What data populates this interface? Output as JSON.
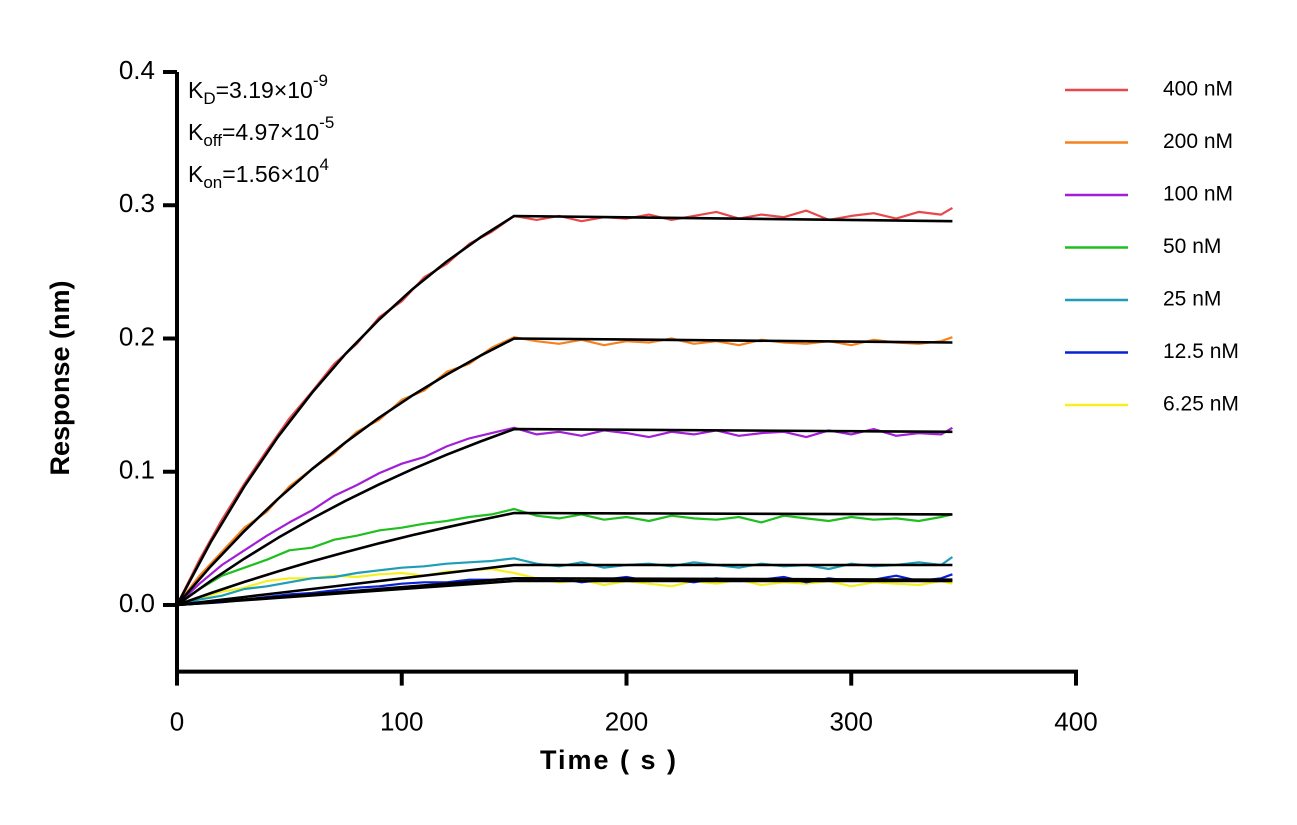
{
  "chart_data": {
    "type": "line",
    "x_label": "Time ( s )",
    "y_label": "Response (nm)",
    "xlim": [
      0,
      400
    ],
    "xticks": [
      0,
      100,
      200,
      300,
      400
    ],
    "ylim": [
      -0.05,
      0.4
    ],
    "yticks": [
      {
        "value": 0,
        "label": "0.0"
      },
      0.1,
      0.2,
      0.3,
      0.4
    ],
    "legend": "right",
    "annotations": [
      {
        "symbol": "K",
        "subscript": "D",
        "value": "=3.19×10",
        "exponent": "-9"
      },
      {
        "symbol": "K",
        "subscript": "off",
        "value": "=4.97×10",
        "exponent": "-5"
      },
      {
        "symbol": "K",
        "subscript": "on",
        "value": "=1.56×10",
        "exponent": "4"
      }
    ],
    "x": [
      0,
      10,
      20,
      30,
      40,
      50,
      60,
      70,
      80,
      90,
      100,
      110,
      120,
      130,
      140,
      150,
      160,
      170,
      180,
      190,
      200,
      210,
      220,
      230,
      240,
      250,
      260,
      270,
      280,
      290,
      300,
      310,
      320,
      330,
      340,
      345
    ],
    "series": [
      {
        "name": "400 nM",
        "color": "#e8474b",
        "values": [
          0.0,
          0.034,
          0.064,
          0.091,
          0.116,
          0.14,
          0.16,
          0.181,
          0.196,
          0.216,
          0.228,
          0.246,
          0.256,
          0.271,
          0.28,
          0.292,
          0.289,
          0.292,
          0.288,
          0.291,
          0.29,
          0.293,
          0.289,
          0.292,
          0.295,
          0.29,
          0.293,
          0.291,
          0.296,
          0.289,
          0.292,
          0.294,
          0.29,
          0.295,
          0.293,
          0.298
        ]
      },
      {
        "name": "200 nM",
        "color": "#f5821f",
        "values": [
          0.0,
          0.022,
          0.04,
          0.058,
          0.07,
          0.089,
          0.102,
          0.114,
          0.13,
          0.139,
          0.154,
          0.161,
          0.175,
          0.181,
          0.193,
          0.201,
          0.198,
          0.196,
          0.199,
          0.195,
          0.198,
          0.197,
          0.2,
          0.196,
          0.198,
          0.195,
          0.199,
          0.197,
          0.196,
          0.198,
          0.195,
          0.199,
          0.197,
          0.196,
          0.198,
          0.201
        ]
      },
      {
        "name": "100 nM",
        "color": "#a11fd6",
        "values": [
          0.0,
          0.016,
          0.03,
          0.041,
          0.052,
          0.062,
          0.071,
          0.082,
          0.09,
          0.099,
          0.106,
          0.111,
          0.119,
          0.125,
          0.129,
          0.133,
          0.128,
          0.13,
          0.127,
          0.131,
          0.129,
          0.126,
          0.13,
          0.128,
          0.131,
          0.127,
          0.129,
          0.13,
          0.126,
          0.131,
          0.128,
          0.132,
          0.127,
          0.129,
          0.128,
          0.133
        ]
      },
      {
        "name": "50 nM",
        "color": "#1fbf1f",
        "values": [
          0.0,
          0.012,
          0.022,
          0.028,
          0.034,
          0.041,
          0.043,
          0.049,
          0.052,
          0.056,
          0.058,
          0.061,
          0.063,
          0.066,
          0.068,
          0.072,
          0.067,
          0.065,
          0.068,
          0.064,
          0.066,
          0.063,
          0.067,
          0.065,
          0.064,
          0.066,
          0.062,
          0.067,
          0.065,
          0.063,
          0.066,
          0.064,
          0.065,
          0.063,
          0.066,
          0.068
        ]
      },
      {
        "name": "25 nM",
        "color": "#1e9eb5",
        "values": [
          0.0,
          0.004,
          0.007,
          0.012,
          0.014,
          0.017,
          0.02,
          0.021,
          0.024,
          0.026,
          0.028,
          0.029,
          0.031,
          0.032,
          0.033,
          0.035,
          0.031,
          0.029,
          0.032,
          0.028,
          0.03,
          0.031,
          0.029,
          0.032,
          0.03,
          0.028,
          0.031,
          0.029,
          0.03,
          0.027,
          0.031,
          0.029,
          0.03,
          0.032,
          0.03,
          0.036
        ]
      },
      {
        "name": "12.5 nM",
        "color": "#0a1fd6",
        "values": [
          0.0,
          0.001,
          0.002,
          0.004,
          0.006,
          0.008,
          0.009,
          0.011,
          0.013,
          0.014,
          0.016,
          0.017,
          0.017,
          0.019,
          0.019,
          0.02,
          0.018,
          0.02,
          0.017,
          0.019,
          0.021,
          0.018,
          0.019,
          0.017,
          0.02,
          0.018,
          0.019,
          0.021,
          0.017,
          0.02,
          0.018,
          0.019,
          0.022,
          0.018,
          0.02,
          0.023
        ]
      },
      {
        "name": "6.25 nM",
        "color": "#f5f01e",
        "values": [
          0.0,
          0.005,
          0.01,
          0.013,
          0.018,
          0.02,
          0.02,
          0.022,
          0.021,
          0.023,
          0.024,
          0.022,
          0.025,
          0.026,
          0.027,
          0.024,
          0.02,
          0.017,
          0.019,
          0.015,
          0.018,
          0.016,
          0.014,
          0.018,
          0.016,
          0.019,
          0.015,
          0.017,
          0.016,
          0.018,
          0.014,
          0.017,
          0.016,
          0.015,
          0.018,
          0.016
        ]
      }
    ],
    "fit": {
      "x": [
        0,
        15,
        30,
        45,
        60,
        75,
        90,
        105,
        120,
        135,
        150,
        345
      ],
      "color": "#000000",
      "series": [
        {
          "values": [
            0,
            0.0472,
            0.0891,
            0.1263,
            0.1592,
            0.1885,
            0.2143,
            0.2374,
            0.2578,
            0.2759,
            0.2919,
            0.288
          ]
        },
        {
          "values": [
            0,
            0.029,
            0.0555,
            0.0797,
            0.1019,
            0.1221,
            0.1406,
            0.1575,
            0.1729,
            0.1871,
            0.2,
            0.197
          ]
        },
        {
          "values": [
            0,
            0.0181,
            0.0348,
            0.0504,
            0.0648,
            0.0782,
            0.0906,
            0.1021,
            0.1128,
            0.1227,
            0.132,
            0.13
          ]
        },
        {
          "values": [
            0,
            0.0089,
            0.0173,
            0.0252,
            0.0327,
            0.0397,
            0.0463,
            0.0525,
            0.0583,
            0.0638,
            0.069,
            0.068
          ]
        },
        {
          "values": [
            0,
            0.003,
            0.006,
            0.009,
            0.012,
            0.015,
            0.018,
            0.021,
            0.024,
            0.027,
            0.03,
            0.03
          ]
        },
        {
          "values": [
            0,
            0.002,
            0.004,
            0.006,
            0.008,
            0.01,
            0.012,
            0.014,
            0.016,
            0.018,
            0.02,
            0.019
          ]
        },
        {
          "values": [
            0,
            0.0018,
            0.0036,
            0.0054,
            0.0072,
            0.009,
            0.0108,
            0.0126,
            0.0144,
            0.0162,
            0.018,
            0.018
          ]
        }
      ]
    }
  }
}
